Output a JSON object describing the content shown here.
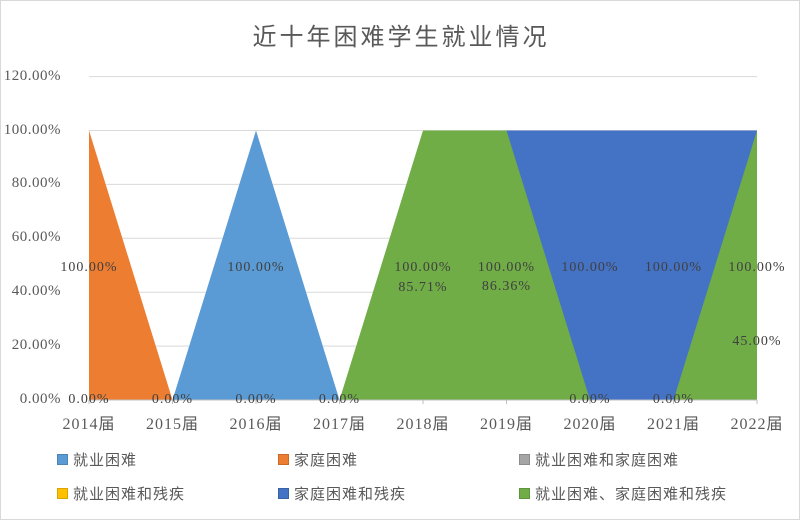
{
  "window": {
    "background": "#FFFFFF",
    "border_color": "#D9D9D9"
  },
  "title": {
    "text": "近十年困难学生就业情况",
    "color": "#595959"
  },
  "chart_data": {
    "type": "area",
    "title": "近十年困难学生就业情况",
    "unit": "%",
    "categories": [
      "2014届",
      "2015届",
      "2016届",
      "2017届",
      "2018届",
      "2019届",
      "2020届",
      "2021届",
      "2022届"
    ],
    "series": [
      {
        "name": "就业困难",
        "color": "#5B9BD5",
        "values": [
          0,
          0,
          100,
          0,
          null,
          null,
          null,
          null,
          null
        ]
      },
      {
        "name": "家庭困难",
        "color": "#ED7D31",
        "values": [
          100,
          0,
          0,
          0,
          null,
          null,
          null,
          null,
          null
        ]
      },
      {
        "name": "就业困难和家庭困难",
        "color": "#A5A5A5",
        "values": [
          null,
          null,
          null,
          null,
          85.71,
          86.36,
          null,
          null,
          45
        ]
      },
      {
        "name": "就业困难和残疾",
        "color": "#FFC000",
        "values": [
          null,
          null,
          null,
          null,
          null,
          null,
          null,
          null,
          null
        ]
      },
      {
        "name": "家庭困难和残疾",
        "color": "#4472C4",
        "values": [
          null,
          null,
          null,
          null,
          null,
          100,
          100,
          100,
          100
        ]
      },
      {
        "name": "就业困难、家庭困难和残疾",
        "color": "#70AD47",
        "values": [
          null,
          null,
          null,
          0,
          100,
          100,
          0,
          0,
          100
        ]
      }
    ],
    "ylim": [
      0,
      120
    ],
    "yticks": [
      {
        "text": "0.00%",
        "value": 0
      },
      {
        "text": "20.00%",
        "value": 20
      },
      {
        "text": "40.00%",
        "value": 40
      },
      {
        "text": "60.00%",
        "value": 60
      },
      {
        "text": "80.00%",
        "value": 80
      },
      {
        "text": "100.00%",
        "value": 100
      },
      {
        "text": "120.00%",
        "value": 120
      }
    ],
    "grid": true,
    "legend_position": "bottom",
    "axis_text_color": "#595959",
    "gridline_color": "#D9D9D9",
    "axis_line_color": "#BFBFBF",
    "data_label_color": "#404040",
    "point_labels": [
      {
        "category": 0,
        "series": "家庭困难",
        "text": "100.00%",
        "value": 100
      },
      {
        "category": 0,
        "series": "就业困难",
        "text": "0.00%",
        "value": 0
      },
      {
        "category": 1,
        "series": "家庭困难",
        "text": "0.00%",
        "value": 0
      },
      {
        "category": 2,
        "series": "就业困难",
        "text": "100.00%",
        "value": 100
      },
      {
        "category": 2,
        "series": "家庭困难",
        "text": "0.00%",
        "value": 0
      },
      {
        "category": 3,
        "series": "就业困难、家庭困难和残疾",
        "text": "0.00%",
        "value": 0
      },
      {
        "category": 4,
        "series": "就业困难、家庭困难和残疾",
        "text": "100.00%",
        "value": 100
      },
      {
        "category": 4,
        "series": "就业困难和家庭困难",
        "text": "85.71%",
        "value": 85.71
      },
      {
        "category": 5,
        "series": "就业困难、家庭困难和残疾",
        "text": "100.00%",
        "value": 100
      },
      {
        "category": 5,
        "series": "就业困难和家庭困难",
        "text": "86.36%",
        "value": 86.36
      },
      {
        "category": 6,
        "series": "家庭困难和残疾",
        "text": "100.00%",
        "value": 100
      },
      {
        "category": 6,
        "series": "就业困难、家庭困难和残疾",
        "text": "0.00%",
        "value": 0
      },
      {
        "category": 7,
        "series": "家庭困难和残疾",
        "text": "100.00%",
        "value": 100
      },
      {
        "category": 7,
        "series": "就业困难、家庭困难和残疾",
        "text": "0.00%",
        "value": 0
      },
      {
        "category": 8,
        "series": "就业困难、家庭困难和残疾",
        "text": "100.00%",
        "value": 100
      },
      {
        "category": 8,
        "series": "就业困难和家庭困难",
        "text": "45.00%",
        "value": 45
      }
    ]
  }
}
